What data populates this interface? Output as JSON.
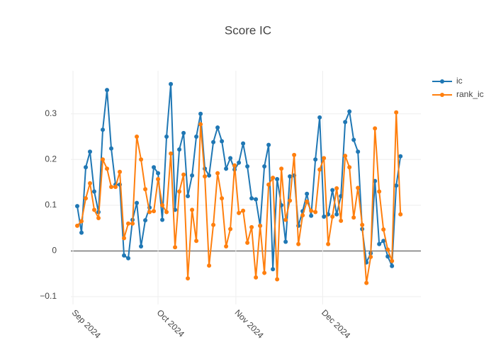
{
  "chart_data": {
    "type": "line",
    "title": "Score IC",
    "series": [
      {
        "name": "ic",
        "color": "#1f77b4",
        "values": [
          0.098,
          0.04,
          0.183,
          0.217,
          0.13,
          0.085,
          0.265,
          0.352,
          0.224,
          0.145,
          0.145,
          -0.01,
          -0.016,
          0.068,
          0.105,
          0.01,
          0.067,
          0.095,
          0.183,
          0.17,
          0.068,
          0.25,
          0.365,
          0.09,
          0.222,
          0.258,
          0.12,
          0.165,
          0.25,
          0.3,
          0.18,
          0.165,
          0.238,
          0.27,
          0.24,
          0.18,
          0.203,
          0.178,
          0.193,
          0.235,
          0.185,
          0.115,
          0.113,
          0.055,
          0.185,
          0.232,
          -0.04,
          0.157,
          0.1,
          0.02,
          0.163,
          0.165,
          0.055,
          0.087,
          0.125,
          0.077,
          0.2,
          0.292,
          0.075,
          0.08,
          0.133,
          0.08,
          0.12,
          0.282,
          0.305,
          0.243,
          0.217,
          0.048,
          -0.025,
          -0.005,
          0.153,
          0.015,
          0.022,
          -0.012,
          -0.033,
          0.143,
          0.207
        ]
      },
      {
        "name": "rank_ic",
        "color": "#ff7f0e",
        "values": [
          0.055,
          0.065,
          0.115,
          0.148,
          0.09,
          0.072,
          0.2,
          0.18,
          0.14,
          0.14,
          0.173,
          0.028,
          0.06,
          0.06,
          0.25,
          0.2,
          0.135,
          0.085,
          0.087,
          0.157,
          0.1,
          0.085,
          0.213,
          0.008,
          0.13,
          0.167,
          -0.06,
          0.09,
          0.022,
          0.277,
          0.163,
          -0.032,
          0.057,
          0.17,
          0.115,
          0.01,
          0.048,
          0.187,
          0.083,
          0.088,
          0.018,
          0.052,
          -0.058,
          0.055,
          -0.048,
          0.145,
          0.16,
          -0.062,
          0.18,
          0.068,
          0.11,
          0.21,
          0.015,
          0.078,
          0.108,
          0.088,
          0.085,
          0.178,
          0.203,
          0.015,
          0.075,
          0.137,
          0.066,
          0.208,
          0.183,
          0.073,
          0.138,
          0.057,
          -0.07,
          -0.013,
          0.268,
          0.13,
          0.047,
          0.003,
          -0.022,
          0.303,
          0.08
        ]
      }
    ],
    "xlim": [
      -1.5,
      80.8
    ],
    "xticks": [
      {
        "value": -1,
        "label": "Sep 2024"
      },
      {
        "value": 19,
        "label": "Oct 2024"
      },
      {
        "value": 37.3,
        "label": "Nov 2024"
      },
      {
        "value": 57.7,
        "label": "Dec 2024"
      }
    ],
    "ylim": [
      -0.117,
      0.394
    ],
    "yticks": [
      {
        "value": -0.1,
        "label": "−0.1"
      },
      0,
      0.1,
      0.2,
      0.3
    ],
    "grid": true,
    "legend": "right"
  }
}
